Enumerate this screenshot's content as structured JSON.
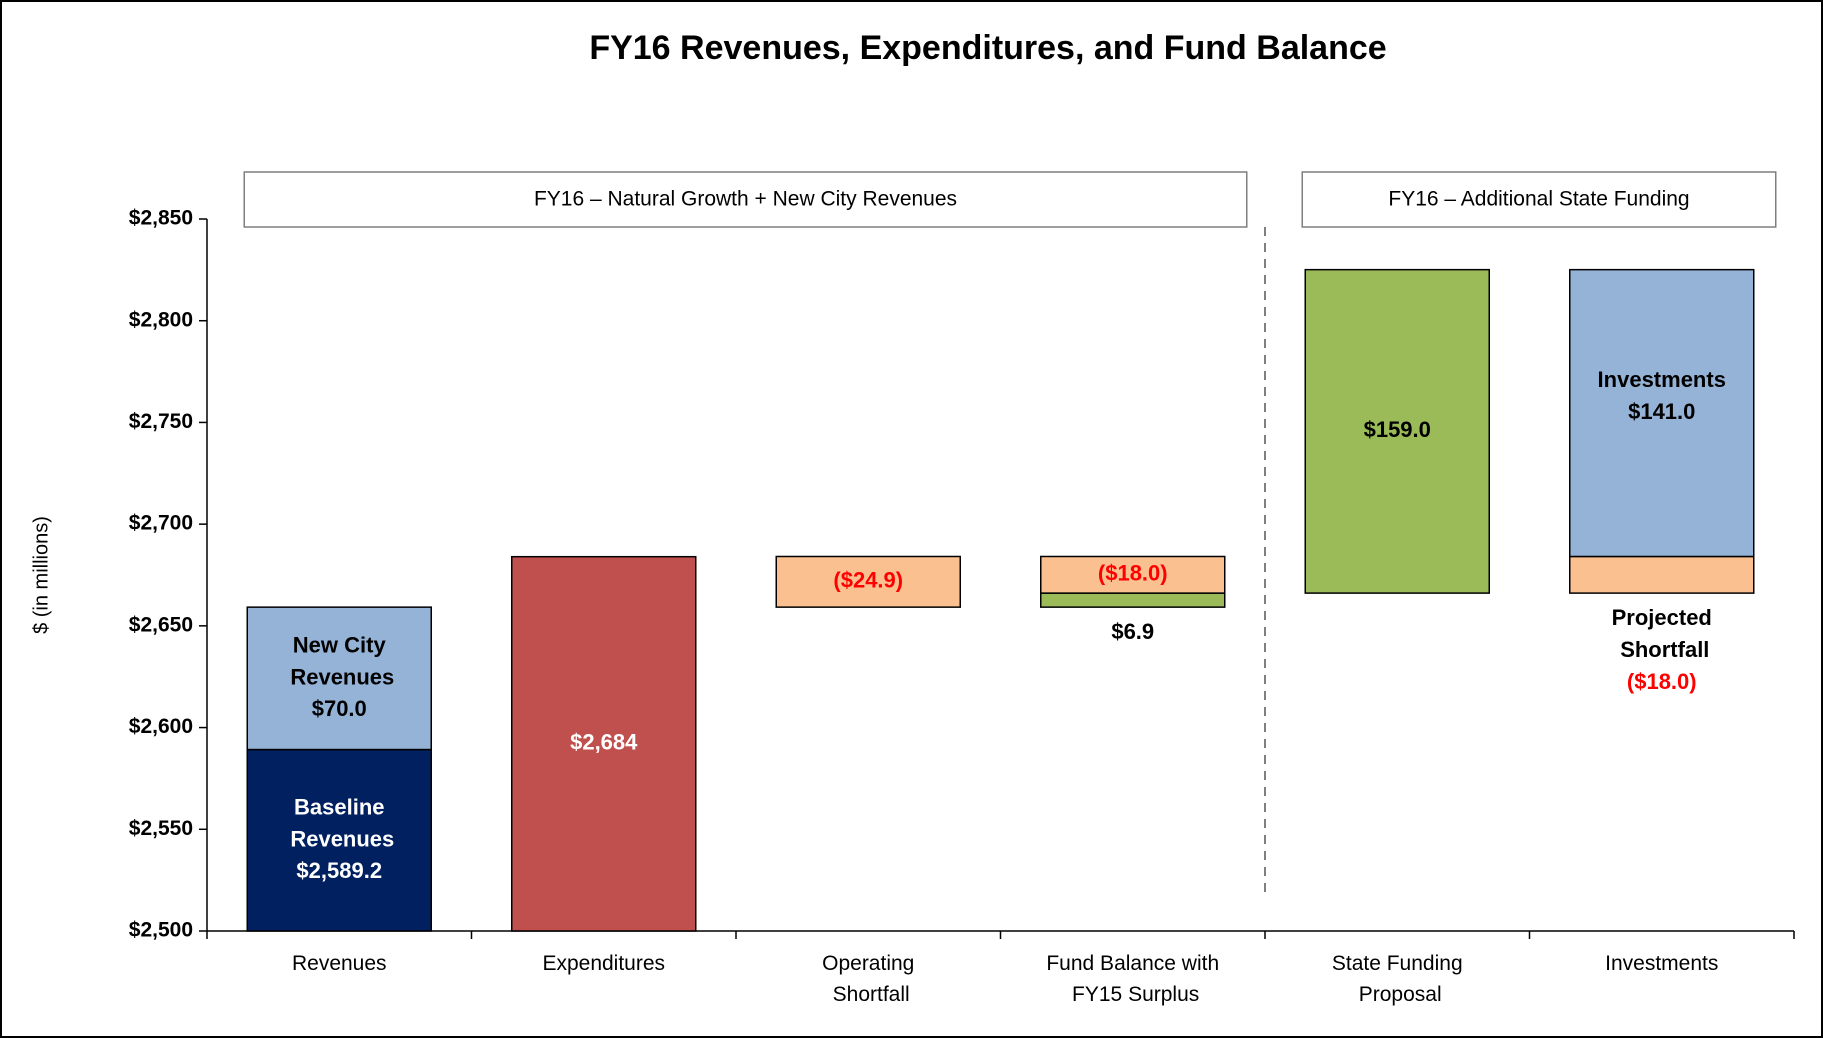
{
  "chart_data": {
    "type": "waterfall",
    "title": "FY16 Revenues, Expenditures, and Fund Balance",
    "y_label": "$ (in millions)",
    "ylim": [
      2500,
      2850
    ],
    "yticks": [
      {
        "value": 2500,
        "label": "$2,500"
      },
      {
        "value": 2550,
        "label": "$2,550"
      },
      {
        "value": 2600,
        "label": "$2,600"
      },
      {
        "value": 2650,
        "label": "$2,650"
      },
      {
        "value": 2700,
        "label": "$2,700"
      },
      {
        "value": 2750,
        "label": "$2,750"
      },
      {
        "value": 2800,
        "label": "$2,800"
      },
      {
        "value": 2850,
        "label": "$2,850"
      }
    ],
    "panels": [
      {
        "label": "FY16 – Natural Growth + New City Revenues",
        "columns": [
          {
            "category": "Revenues",
            "segments": [
              {
                "name": "Baseline Revenues",
                "value": 2589.2,
                "value_label": "$2,589.2",
                "color": "#002060"
              },
              {
                "name": "New City Revenues",
                "value": 70.0,
                "value_label": "$70.0",
                "color": "#95b3d7"
              }
            ]
          },
          {
            "category": "Expenditures",
            "segments": [
              {
                "value": 2684,
                "value_label": "$2,684",
                "color": "#c0504d"
              }
            ]
          },
          {
            "category": "Operating Shortfall",
            "segments": [
              {
                "value": -24.9,
                "value_label": "($24.9)",
                "color": "#fac090"
              }
            ]
          },
          {
            "category": "Fund Balance with FY15 Surplus",
            "segments": [
              {
                "value": 6.9,
                "value_label": "$6.9",
                "color": "#9bbb59"
              },
              {
                "value": -18.0,
                "value_label": "($18.0)",
                "color": "#fac090"
              }
            ]
          }
        ]
      },
      {
        "label": "FY16 – Additional State Funding",
        "columns": [
          {
            "category": "State Funding Proposal",
            "segments": [
              {
                "value": 159.0,
                "value_label": "$159.0",
                "color": "#9bbb59"
              }
            ]
          },
          {
            "category": "Investments",
            "segments": [
              {
                "name": "Projected Shortfall",
                "value": -18.0,
                "value_label": "($18.0)",
                "color": "#fac090"
              },
              {
                "name": "Investments",
                "value": 141.0,
                "value_label": "$141.0",
                "color": "#95b3d7"
              }
            ]
          }
        ]
      }
    ]
  }
}
